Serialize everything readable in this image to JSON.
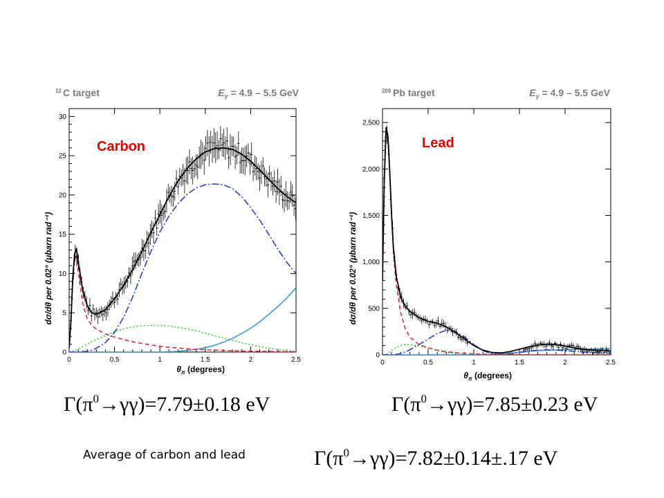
{
  "chart_data": [
    {
      "type": "line",
      "panel_header_left_sup": "12",
      "panel_header_left": "C target",
      "panel_header_right": "E_γ = 4.9 – 5.5 GeV",
      "header_right_parts": [
        "E",
        "γ",
        " = 4.9 – 5.5 GeV"
      ],
      "annotation": "Carbon",
      "xlabel_parts": [
        "θ",
        "π",
        " (degrees)"
      ],
      "ylabel": "dσ/dθ per 0.02° (μbarn rad⁻¹)",
      "xlim": [
        0,
        2.5
      ],
      "ylim": [
        0,
        31
      ],
      "xticks": [
        0,
        0.5,
        1,
        1.5,
        2,
        2.5
      ],
      "xtick_labels": [
        "0",
        "0.5",
        "1",
        "1.5",
        "2",
        "2.5"
      ],
      "yticks": [
        0,
        5,
        10,
        15,
        20,
        25,
        30
      ],
      "ytick_labels": [
        "0",
        "5",
        "10",
        "15",
        "20",
        "25",
        "30"
      ],
      "x": [
        0,
        0.02,
        0.04,
        0.06,
        0.08,
        0.1,
        0.15,
        0.2,
        0.25,
        0.3,
        0.4,
        0.5,
        0.6,
        0.7,
        0.8,
        0.9,
        1.0,
        1.1,
        1.2,
        1.3,
        1.4,
        1.5,
        1.6,
        1.7,
        1.8,
        1.9,
        2.0,
        2.1,
        2.2,
        2.3,
        2.4,
        2.5
      ],
      "series": [
        {
          "role": "total fit",
          "color": "#000000",
          "dash": "",
          "values": [
            0.5,
            4.0,
            9.5,
            12.5,
            13.2,
            11.5,
            7.8,
            5.9,
            5.0,
            4.8,
            5.4,
            6.8,
            8.5,
            10.5,
            12.8,
            15.2,
            17.5,
            19.8,
            21.8,
            23.4,
            24.6,
            25.5,
            25.9,
            26.0,
            25.8,
            25.2,
            24.3,
            23.2,
            22.0,
            20.8,
            19.8,
            19.0
          ]
        },
        {
          "role": "Primakoff",
          "color": "#e8283a",
          "dash": "6,4",
          "values": [
            0.5,
            3.8,
            9.0,
            11.8,
            12.2,
            10.2,
            6.2,
            4.2,
            3.4,
            2.9,
            2.3,
            1.9,
            1.6,
            1.3,
            1.1,
            0.9,
            0.75,
            0.6,
            0.5,
            0.42,
            0.35,
            0.3,
            0.25,
            0.2,
            0.17,
            0.14,
            0.12,
            0.1,
            0.08,
            0.06,
            0.05,
            0.04
          ]
        },
        {
          "role": "nuclear coherent",
          "color": "#2b3fc4",
          "dash": "10,3,2,3",
          "values": [
            0,
            0,
            0,
            0,
            0,
            0,
            0.05,
            0.1,
            0.25,
            0.5,
            1.2,
            2.5,
            4.4,
            7.0,
            10.0,
            12.8,
            15.3,
            17.3,
            18.9,
            20.1,
            20.9,
            21.3,
            21.4,
            21.3,
            20.8,
            19.8,
            18.4,
            16.8,
            15.0,
            13.1,
            11.4,
            10.0
          ]
        },
        {
          "role": "interference",
          "color": "#2fd12f",
          "dash": "2,3",
          "values": [
            0,
            0.05,
            0.1,
            0.2,
            0.3,
            0.4,
            0.7,
            1.0,
            1.3,
            1.6,
            2.1,
            2.6,
            2.95,
            3.2,
            3.35,
            3.4,
            3.38,
            3.3,
            3.15,
            2.95,
            2.7,
            2.4,
            2.1,
            1.8,
            1.5,
            1.2,
            0.95,
            0.7,
            0.5,
            0.35,
            0.2,
            0.1
          ]
        },
        {
          "role": "incoherent",
          "color": "#3d9bd6",
          "dash": "",
          "values": [
            0,
            0,
            0,
            0,
            0,
            0,
            0,
            0,
            0,
            0,
            0,
            0,
            0,
            0,
            0,
            0,
            0,
            0.05,
            0.1,
            0.2,
            0.35,
            0.55,
            0.85,
            1.25,
            1.75,
            2.35,
            3.05,
            3.85,
            4.8,
            5.8,
            6.9,
            8.2
          ]
        }
      ]
    },
    {
      "type": "line",
      "panel_header_left_sup": "208",
      "panel_header_left": "Pb target",
      "panel_header_right": "E_γ = 4.9 – 5.5 GeV",
      "header_right_parts": [
        "E",
        "γ",
        " = 4.9 – 5.5 GeV"
      ],
      "annotation": "Lead",
      "xlabel_parts": [
        "θ",
        "π",
        " (degrees)"
      ],
      "ylabel": "dσ/dθ per 0.02° (μbarn rad⁻¹)",
      "xlim": [
        0,
        2.5
      ],
      "ylim": [
        0,
        2650
      ],
      "xticks": [
        0,
        0.5,
        1,
        1.5,
        2,
        2.5
      ],
      "xtick_labels": [
        "0",
        "0.5",
        "1",
        "1.5",
        "2",
        "2.5"
      ],
      "yticks": [
        0,
        500,
        1000,
        1500,
        2000,
        2500
      ],
      "ytick_labels": [
        "0",
        "500",
        "1,000",
        "1,500",
        "2,000",
        "2,500"
      ],
      "x": [
        0,
        0.02,
        0.04,
        0.06,
        0.08,
        0.1,
        0.12,
        0.15,
        0.2,
        0.25,
        0.3,
        0.4,
        0.5,
        0.6,
        0.7,
        0.8,
        0.9,
        1.0,
        1.1,
        1.2,
        1.3,
        1.4,
        1.5,
        1.6,
        1.7,
        1.8,
        1.9,
        2.0,
        2.1,
        2.2,
        2.3,
        2.4,
        2.5
      ],
      "series": [
        {
          "role": "total fit",
          "color": "#000000",
          "dash": "",
          "values": [
            800,
            1900,
            2450,
            2350,
            1950,
            1500,
            1150,
            850,
            620,
            520,
            470,
            400,
            360,
            340,
            300,
            240,
            170,
            100,
            50,
            25,
            20,
            35,
            60,
            85,
            105,
            115,
            110,
            95,
            75,
            60,
            50,
            45,
            40
          ]
        },
        {
          "role": "Primakoff",
          "color": "#e8283a",
          "dash": "6,4",
          "values": [
            800,
            1900,
            2450,
            2340,
            1930,
            1470,
            1100,
            760,
            450,
            280,
            190,
            110,
            75,
            50,
            35,
            22,
            15,
            10,
            6,
            4,
            3,
            2,
            2,
            1,
            1,
            1,
            1,
            0,
            0,
            0,
            0,
            0,
            0
          ]
        },
        {
          "role": "nuclear coherent",
          "color": "#2b3fc4",
          "dash": "10,3,2,3",
          "values": [
            0,
            0,
            0,
            0,
            0,
            0,
            0,
            5,
            15,
            30,
            55,
            110,
            170,
            230,
            265,
            250,
            190,
            110,
            45,
            10,
            2,
            10,
            25,
            40,
            50,
            55,
            52,
            45,
            38,
            30,
            24,
            20,
            18
          ]
        },
        {
          "role": "interference",
          "color": "#2fd12f",
          "dash": "2,3",
          "values": [
            0,
            0,
            5,
            15,
            30,
            45,
            60,
            80,
            100,
            110,
            110,
            95,
            70,
            45,
            25,
            12,
            5,
            0,
            0,
            0,
            0,
            0,
            0,
            0,
            0,
            0,
            0,
            0,
            0,
            0,
            0,
            0,
            0
          ]
        },
        {
          "role": "incoherent",
          "color": "#3d9bd6",
          "dash": "",
          "values": [
            0,
            0,
            0,
            0,
            0,
            0,
            0,
            0,
            0,
            0,
            0,
            0,
            0,
            0,
            0,
            0,
            0,
            0,
            2,
            5,
            10,
            18,
            28,
            38,
            45,
            50,
            52,
            55,
            58,
            60,
            62,
            64,
            65
          ]
        }
      ]
    }
  ],
  "results": {
    "carbon": {
      "lhs": "Γ(π",
      "sup": "0",
      "rhs": "→γγ)=7.79±0.18 eV"
    },
    "lead": {
      "lhs": "Γ(π",
      "sup": "0",
      "rhs": "→γγ)=7.85±0.23 eV"
    },
    "average": {
      "lhs": "Γ(π",
      "sup": "0",
      "rhs": "→γγ)=7.82±0.14±.17 eV"
    }
  },
  "average_label": "Average of carbon and lead",
  "colors": {
    "annotation": "#e60000",
    "header": "#7a7a7a",
    "points": "#000000"
  }
}
